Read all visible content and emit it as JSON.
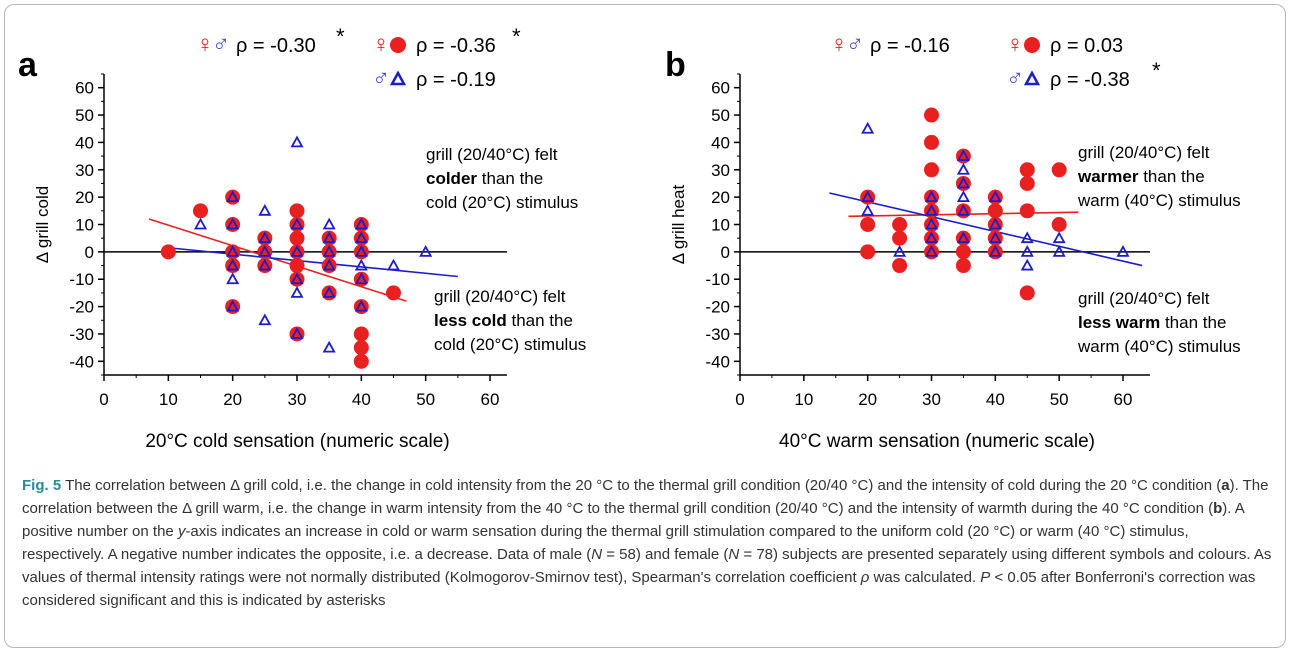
{
  "figure": {
    "caption_label": "Fig. 5",
    "caption_parts": [
      {
        "t": "The correlation between Δ grill cold, i.e. the change in cold intensity from the 20 °C to the thermal grill condition (20/40 °C) and the intensity of cold during the 20 °C condition ("
      },
      {
        "t": "a",
        "b": true
      },
      {
        "t": "). The correlation between the Δ grill warm, i.e. the change in warm intensity from the 40 °C to the thermal grill condition (20/40 °C) and the intensity of warmth during the 40 °C condition ("
      },
      {
        "t": "b",
        "b": true
      },
      {
        "t": "). A positive number on the "
      },
      {
        "t": "y",
        "i": true
      },
      {
        "t": "-axis indicates an increase in cold or warm sensation during the thermal grill stimulation compared to the uniform cold (20 °C) or warm (40 °C) stimulus, respectively. A negative number indicates the opposite, i.e. a decrease. Data of male ("
      },
      {
        "t": "N",
        "i": true
      },
      {
        "t": " = 58) and female ("
      },
      {
        "t": "N",
        "i": true
      },
      {
        "t": " = 78) subjects are presented separately using different symbols and colours. As values of thermal intensity ratings were not normally distributed (Kolmogorov-Smirnov test), Spearman's correlation coefficient "
      },
      {
        "t": "ρ",
        "i": true
      },
      {
        "t": " was calculated. "
      },
      {
        "t": "P",
        "i": true
      },
      {
        "t": " < 0.05 after Bonferroni's correction was considered significant and this is indicated by asterisks"
      }
    ]
  },
  "colors": {
    "female": "#e8201f",
    "male": "#1c1cc8",
    "sex_symbol_female": "#e8201f",
    "sex_symbol_male": "#4a4acd",
    "axis": "#000000"
  },
  "chart_data": [
    {
      "type": "scatter",
      "panel_label": "a",
      "xlabel": "20°C cold sensation (numeric scale)",
      "ylabel": "Δ grill cold",
      "xlim": [
        0,
        70
      ],
      "ylim": [
        -45,
        65
      ],
      "xticks": [
        "0",
        "10",
        "20",
        "30",
        "40",
        "50",
        "60"
      ],
      "yticks": [
        "-40",
        "-30",
        "-20",
        "-10",
        "0",
        "10",
        "20",
        "30",
        "40",
        "50",
        "60"
      ],
      "zero_line": true,
      "stats": {
        "both": {
          "symbol": "♀♂",
          "text": "ρ = -0.30",
          "star": "*"
        },
        "female": {
          "symbol": "♀",
          "text": "ρ = -0.36",
          "star": "*"
        },
        "male": {
          "symbol": "♂",
          "text": "ρ = -0.19",
          "star": ""
        }
      },
      "annotation_top": {
        "line1": "grill (20/40°C) felt",
        "bold": "colder",
        "line2_rest": " than the",
        "line3": "cold (20°C) stimulus"
      },
      "annotation_bottom": {
        "line1": "grill (20/40°C) felt",
        "bold": "less cold",
        "line2_rest": " than the",
        "line3": "cold (20°C) stimulus"
      },
      "series": [
        {
          "group": "female",
          "points": [
            [
              10,
              0
            ],
            [
              15,
              15
            ],
            [
              20,
              20
            ],
            [
              20,
              10
            ],
            [
              20,
              0
            ],
            [
              20,
              -5
            ],
            [
              20,
              -20
            ],
            [
              25,
              5
            ],
            [
              25,
              0
            ],
            [
              25,
              -5
            ],
            [
              30,
              15
            ],
            [
              30,
              10
            ],
            [
              30,
              5
            ],
            [
              30,
              0
            ],
            [
              30,
              -5
            ],
            [
              30,
              -10
            ],
            [
              30,
              -30
            ],
            [
              35,
              5
            ],
            [
              35,
              0
            ],
            [
              35,
              -5
            ],
            [
              35,
              -15
            ],
            [
              40,
              10
            ],
            [
              40,
              5
            ],
            [
              40,
              0
            ],
            [
              40,
              -10
            ],
            [
              40,
              -20
            ],
            [
              40,
              -30
            ],
            [
              40,
              -35
            ],
            [
              40,
              -40
            ],
            [
              45,
              -15
            ]
          ]
        },
        {
          "group": "male",
          "points": [
            [
              15,
              10
            ],
            [
              20,
              20
            ],
            [
              20,
              10
            ],
            [
              20,
              0
            ],
            [
              20,
              -5
            ],
            [
              20,
              -10
            ],
            [
              20,
              -20
            ],
            [
              25,
              15
            ],
            [
              25,
              5
            ],
            [
              25,
              0
            ],
            [
              25,
              -5
            ],
            [
              25,
              -25
            ],
            [
              30,
              40
            ],
            [
              30,
              10
            ],
            [
              30,
              0
            ],
            [
              30,
              -10
            ],
            [
              30,
              -15
            ],
            [
              30,
              -30
            ],
            [
              35,
              10
            ],
            [
              35,
              5
            ],
            [
              35,
              0
            ],
            [
              35,
              -5
            ],
            [
              35,
              -15
            ],
            [
              35,
              -35
            ],
            [
              40,
              10
            ],
            [
              40,
              5
            ],
            [
              40,
              0
            ],
            [
              40,
              -5
            ],
            [
              40,
              -10
            ],
            [
              40,
              -20
            ],
            [
              45,
              -5
            ],
            [
              50,
              0
            ]
          ]
        }
      ],
      "fits": {
        "female": {
          "x": [
            7,
            47
          ],
          "y": [
            12,
            -18
          ]
        },
        "male": {
          "x": [
            10,
            55
          ],
          "y": [
            1.5,
            -9
          ]
        }
      }
    },
    {
      "type": "scatter",
      "panel_label": "b",
      "xlabel": "40°C warm sensation (numeric scale)",
      "ylabel": "Δ grill heat",
      "xlim": [
        0,
        65
      ],
      "ylim": [
        -45,
        65
      ],
      "xticks": [
        "0",
        "10",
        "20",
        "30",
        "40",
        "50",
        "60"
      ],
      "yticks": [
        "-40",
        "-30",
        "-20",
        "-10",
        "0",
        "10",
        "20",
        "30",
        "40",
        "50",
        "60"
      ],
      "zero_line": true,
      "stats": {
        "both": {
          "symbol": "♀♂",
          "text": "ρ = -0.16",
          "star": ""
        },
        "female": {
          "symbol": "♀",
          "text": "ρ = 0.03",
          "star": ""
        },
        "male": {
          "symbol": "♂",
          "text": "ρ = -0.38",
          "star": "*"
        }
      },
      "annotation_top": {
        "line1": "grill (20/40°C) felt",
        "bold": "warmer",
        "line2_rest": " than the",
        "line3": "warm (40°C) stimulus"
      },
      "annotation_bottom": {
        "line1": "grill (20/40°C) felt",
        "bold": "less warm",
        "line2_rest": " than the",
        "line3": "warm (40°C) stimulus"
      },
      "series": [
        {
          "group": "female",
          "points": [
            [
              20,
              20
            ],
            [
              20,
              10
            ],
            [
              20,
              0
            ],
            [
              25,
              10
            ],
            [
              25,
              5
            ],
            [
              25,
              -5
            ],
            [
              30,
              50
            ],
            [
              30,
              40
            ],
            [
              30,
              30
            ],
            [
              30,
              20
            ],
            [
              30,
              15
            ],
            [
              30,
              10
            ],
            [
              30,
              5
            ],
            [
              30,
              0
            ],
            [
              35,
              35
            ],
            [
              35,
              25
            ],
            [
              35,
              15
            ],
            [
              35,
              5
            ],
            [
              35,
              0
            ],
            [
              35,
              -5
            ],
            [
              40,
              20
            ],
            [
              40,
              15
            ],
            [
              40,
              10
            ],
            [
              40,
              5
            ],
            [
              40,
              0
            ],
            [
              45,
              30
            ],
            [
              45,
              25
            ],
            [
              45,
              15
            ],
            [
              45,
              -15
            ],
            [
              50,
              30
            ],
            [
              50,
              10
            ]
          ]
        },
        {
          "group": "male",
          "points": [
            [
              20,
              45
            ],
            [
              20,
              20
            ],
            [
              20,
              15
            ],
            [
              25,
              0
            ],
            [
              30,
              20
            ],
            [
              30,
              15
            ],
            [
              30,
              10
            ],
            [
              30,
              5
            ],
            [
              30,
              0
            ],
            [
              35,
              35
            ],
            [
              35,
              30
            ],
            [
              35,
              25
            ],
            [
              35,
              20
            ],
            [
              35,
              15
            ],
            [
              35,
              5
            ],
            [
              40,
              20
            ],
            [
              40,
              10
            ],
            [
              40,
              5
            ],
            [
              40,
              0
            ],
            [
              45,
              5
            ],
            [
              45,
              0
            ],
            [
              45,
              -5
            ],
            [
              50,
              5
            ],
            [
              50,
              0
            ],
            [
              60,
              0
            ]
          ]
        }
      ],
      "fits": {
        "female": {
          "x": [
            17,
            53
          ],
          "y": [
            13,
            14.5
          ]
        },
        "male": {
          "x": [
            14,
            63
          ],
          "y": [
            21.5,
            -5
          ]
        }
      }
    }
  ]
}
